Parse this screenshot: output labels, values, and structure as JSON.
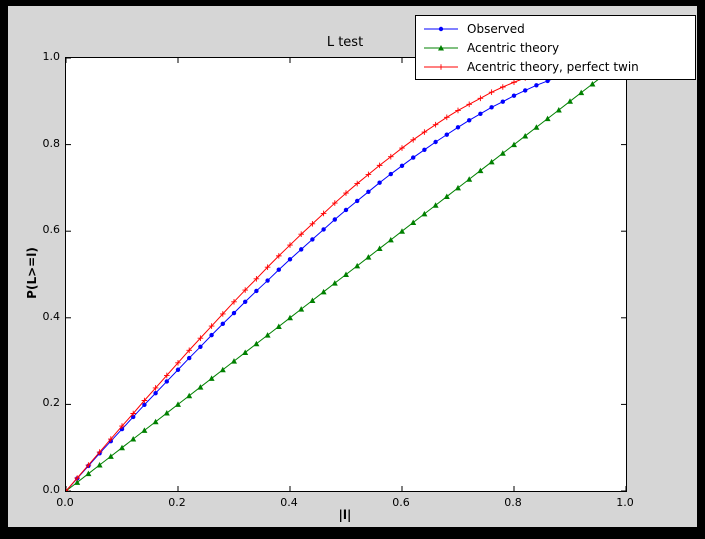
{
  "window": {
    "frame_color": "#000000",
    "figure_bg": "#d6d6d6",
    "axes_bg": "#ffffff",
    "axes_border": "#000000"
  },
  "chart_data": {
    "type": "line",
    "title": "L test",
    "xlabel": "|l|",
    "ylabel": "P(L>=l)",
    "xlim": [
      0.0,
      1.0
    ],
    "ylim": [
      0.0,
      1.0
    ],
    "xticks": [
      "0.0",
      "0.2",
      "0.4",
      "0.6",
      "0.8",
      "1.0"
    ],
    "yticks": [
      "0.0",
      "0.2",
      "0.4",
      "0.6",
      "0.8",
      "1.0"
    ],
    "grid": false,
    "legend_position": "upper right, overlapping top edge of axes",
    "x": [
      0.0,
      0.02,
      0.04,
      0.06,
      0.08,
      0.1,
      0.12,
      0.14,
      0.16,
      0.18,
      0.2,
      0.22,
      0.24,
      0.26,
      0.28,
      0.3,
      0.32,
      0.34,
      0.36,
      0.38,
      0.4,
      0.42,
      0.44,
      0.46,
      0.48,
      0.5,
      0.52,
      0.54,
      0.56,
      0.58,
      0.6,
      0.62,
      0.64,
      0.66,
      0.68,
      0.7,
      0.72,
      0.74,
      0.76,
      0.78,
      0.8,
      0.82,
      0.84,
      0.86,
      0.88,
      0.9,
      0.92,
      0.94,
      0.96,
      0.98,
      1.0
    ],
    "series": [
      {
        "name": "Observed",
        "color": "#0000ff",
        "marker": "circle",
        "values": [
          0.0,
          0.029,
          0.058,
          0.087,
          0.115,
          0.143,
          0.171,
          0.199,
          0.226,
          0.253,
          0.28,
          0.307,
          0.333,
          0.36,
          0.386,
          0.411,
          0.437,
          0.462,
          0.486,
          0.511,
          0.535,
          0.558,
          0.581,
          0.604,
          0.627,
          0.649,
          0.67,
          0.691,
          0.712,
          0.732,
          0.751,
          0.77,
          0.788,
          0.806,
          0.823,
          0.84,
          0.856,
          0.871,
          0.886,
          0.899,
          0.913,
          0.925,
          0.937,
          0.947,
          0.957,
          0.967,
          0.975,
          0.983,
          0.989,
          0.995,
          1.0
        ]
      },
      {
        "name": "Acentric theory",
        "color": "#008000",
        "marker": "triangle",
        "values": [
          0.0,
          0.02,
          0.04,
          0.06,
          0.08,
          0.1,
          0.12,
          0.14,
          0.16,
          0.18,
          0.2,
          0.22,
          0.24,
          0.26,
          0.28,
          0.3,
          0.32,
          0.34,
          0.36,
          0.38,
          0.4,
          0.42,
          0.44,
          0.46,
          0.48,
          0.5,
          0.52,
          0.54,
          0.56,
          0.58,
          0.6,
          0.62,
          0.64,
          0.66,
          0.68,
          0.7,
          0.72,
          0.74,
          0.76,
          0.78,
          0.8,
          0.82,
          0.84,
          0.86,
          0.88,
          0.9,
          0.92,
          0.94,
          0.96,
          0.98,
          1.0
        ]
      },
      {
        "name": "Acentric theory, perfect twin",
        "color": "#ff0000",
        "marker": "plus",
        "values": [
          0.0,
          0.03,
          0.06,
          0.09,
          0.12,
          0.15,
          0.179,
          0.209,
          0.238,
          0.267,
          0.296,
          0.325,
          0.353,
          0.381,
          0.409,
          0.437,
          0.464,
          0.49,
          0.517,
          0.543,
          0.568,
          0.593,
          0.617,
          0.641,
          0.665,
          0.688,
          0.71,
          0.731,
          0.752,
          0.772,
          0.792,
          0.811,
          0.829,
          0.846,
          0.863,
          0.879,
          0.893,
          0.907,
          0.921,
          0.933,
          0.944,
          0.954,
          0.964,
          0.972,
          0.979,
          0.986,
          0.991,
          0.995,
          0.998,
          0.999,
          1.0
        ]
      }
    ]
  }
}
